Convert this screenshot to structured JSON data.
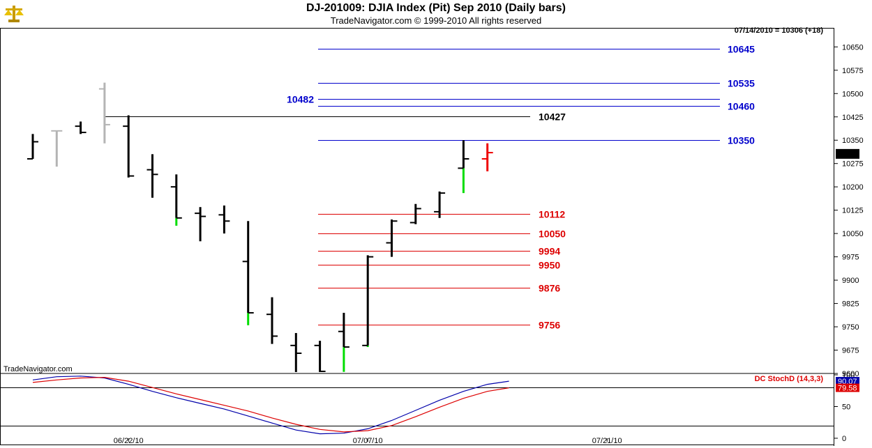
{
  "header": {
    "title": "DJ-201009:  DJIA Index (Pit) Sep 2010  (Daily bars)",
    "subtitle": "TradeNavigator.com © 1999-2010 All rights reserved",
    "last_info": "07/14/2010 = 10306 (+18)",
    "watermark": "TradeNavigator.com",
    "logo_icon": "scales-icon"
  },
  "colors": {
    "up": "#00dd00",
    "down": "#000000",
    "gray": "#b4b4b4",
    "today": "#ee0000",
    "blue_level": "#0000cc",
    "red_level": "#dd0000",
    "black_level": "#000000",
    "stoch_k": "#0000aa",
    "stoch_d": "#dd0000"
  },
  "chart_data": [
    {
      "type": "ohlc",
      "title": "DJ-201009:  DJIA Index (Pit) Sep 2010  (Daily bars)",
      "ylim": [
        9600,
        10700
      ],
      "y_ticks": [
        9600,
        9675,
        9750,
        9825,
        9900,
        9975,
        10050,
        10125,
        10200,
        10275,
        10350,
        10425,
        10500,
        10575,
        10650
      ],
      "x_labels": [
        {
          "label": "06/22/10",
          "index": 4
        },
        {
          "label": "07/07/10",
          "index": 14
        },
        {
          "label": "07/21/10",
          "index": 24
        }
      ],
      "last_price": 10306,
      "bars": [
        {
          "o": 10290,
          "h": 10370,
          "l": 10290,
          "c": 10345,
          "s": "down"
        },
        {
          "o": 10380,
          "h": 10380,
          "l": 10265,
          "c": 10380,
          "s": "gray"
        },
        {
          "o": 10395,
          "h": 10410,
          "l": 10370,
          "c": 10375,
          "s": "down"
        },
        {
          "o": 10515,
          "h": 10535,
          "l": 10340,
          "c": 10400,
          "s": "gray"
        },
        {
          "o": 10395,
          "h": 10430,
          "l": 10230,
          "c": 10235,
          "s": "down"
        },
        {
          "o": 10255,
          "h": 10305,
          "l": 10165,
          "c": 10240,
          "s": "down"
        },
        {
          "o": 10200,
          "h": 10240,
          "l": 10075,
          "c": 10100,
          "s": "up_tail"
        },
        {
          "o": 10115,
          "h": 10135,
          "l": 10025,
          "c": 10105,
          "s": "down"
        },
        {
          "o": 10110,
          "h": 10140,
          "l": 10050,
          "c": 10090,
          "s": "down"
        },
        {
          "o": 9960,
          "h": 10090,
          "l": 9755,
          "c": 9795,
          "s": "up_tail"
        },
        {
          "o": 9790,
          "h": 9845,
          "l": 9695,
          "c": 9720,
          "s": "down"
        },
        {
          "o": 9690,
          "h": 9730,
          "l": 9600,
          "c": 9665,
          "s": "down"
        },
        {
          "o": 9690,
          "h": 9705,
          "l": 9600,
          "c": 9605,
          "s": "down"
        },
        {
          "o": 9735,
          "h": 9795,
          "l": 9605,
          "c": 9685,
          "s": "up_tail"
        },
        {
          "o": 9690,
          "h": 9980,
          "l": 9685,
          "c": 9975,
          "s": "up_tail"
        },
        {
          "o": 10020,
          "h": 10095,
          "l": 9975,
          "c": 10090,
          "s": "down"
        },
        {
          "o": 10085,
          "h": 10145,
          "l": 10080,
          "c": 10130,
          "s": "down"
        },
        {
          "o": 10120,
          "h": 10185,
          "l": 10100,
          "c": 10180,
          "s": "down"
        },
        {
          "o": 10260,
          "h": 10350,
          "l": 10180,
          "c": 10290,
          "s": "up_tail"
        },
        {
          "o": 10290,
          "h": 10340,
          "l": 10250,
          "c": 10310,
          "s": "today"
        }
      ],
      "levels": [
        {
          "value": 10645,
          "label": "10645",
          "color": "blue",
          "label_pos": "right"
        },
        {
          "value": 10535,
          "label": "10535",
          "color": "blue",
          "label_pos": "right"
        },
        {
          "value": 10482,
          "label": "10482",
          "color": "blue",
          "label_pos": "left"
        },
        {
          "value": 10460,
          "label": "10460",
          "color": "blue",
          "label_pos": "right"
        },
        {
          "value": 10427,
          "label": "10427",
          "color": "black",
          "label_pos": "mid"
        },
        {
          "value": 10350,
          "label": "10350",
          "color": "blue",
          "label_pos": "right"
        },
        {
          "value": 10112,
          "label": "10112",
          "color": "red",
          "label_pos": "mid"
        },
        {
          "value": 10050,
          "label": "10050",
          "color": "red",
          "label_pos": "mid"
        },
        {
          "value": 9994,
          "label": "9994",
          "color": "red",
          "label_pos": "mid"
        },
        {
          "value": 9950,
          "label": "9950",
          "color": "red",
          "label_pos": "mid"
        },
        {
          "value": 9876,
          "label": "9876",
          "color": "red",
          "label_pos": "mid"
        },
        {
          "value": 9756,
          "label": "9756",
          "color": "red",
          "label_pos": "mid"
        }
      ]
    },
    {
      "type": "line",
      "title": "DC StochD (14,3,3)",
      "ylim": [
        0,
        100
      ],
      "y_ticks": [
        0,
        50,
        100
      ],
      "reference_lines": [
        20,
        80
      ],
      "readouts": [
        "90.07",
        "79.58"
      ],
      "series": [
        {
          "color": "stoch_k",
          "points": [
            [
              0,
              92
            ],
            [
              1,
              97
            ],
            [
              2,
              98
            ],
            [
              3,
              95
            ],
            [
              4,
              85
            ],
            [
              5,
              74
            ],
            [
              6,
              64
            ],
            [
              7,
              55
            ],
            [
              8,
              46
            ],
            [
              9,
              35
            ],
            [
              10,
              24
            ],
            [
              11,
              13
            ],
            [
              12,
              7
            ],
            [
              13,
              8
            ],
            [
              14,
              15
            ],
            [
              15,
              28
            ],
            [
              16,
              44
            ],
            [
              17,
              60
            ],
            [
              18,
              74
            ],
            [
              19,
              85
            ],
            [
              19.9,
              90
            ]
          ]
        },
        {
          "color": "stoch_d",
          "points": [
            [
              0,
              88
            ],
            [
              1,
              92
            ],
            [
              2,
              95
            ],
            [
              3,
              96
            ],
            [
              4,
              90
            ],
            [
              5,
              80
            ],
            [
              6,
              70
            ],
            [
              7,
              61
            ],
            [
              8,
              52
            ],
            [
              9,
              43
            ],
            [
              10,
              32
            ],
            [
              11,
              22
            ],
            [
              12,
              14
            ],
            [
              13,
              10
            ],
            [
              14,
              12
            ],
            [
              15,
              20
            ],
            [
              16,
              34
            ],
            [
              17,
              49
            ],
            [
              18,
              63
            ],
            [
              19,
              74
            ],
            [
              19.9,
              79.6
            ]
          ]
        }
      ]
    }
  ]
}
